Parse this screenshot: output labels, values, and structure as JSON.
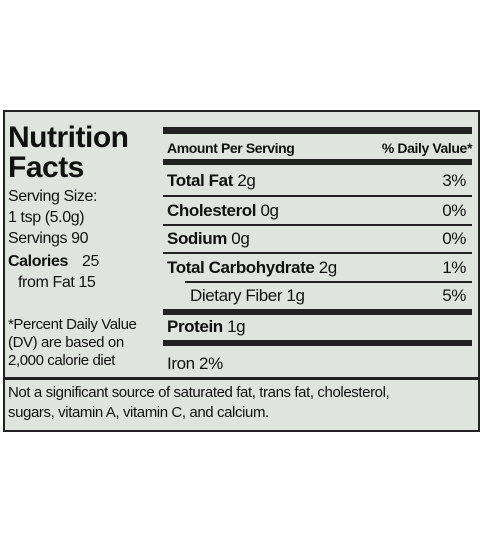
{
  "title_lines": [
    "Nutrition",
    "Facts"
  ],
  "serving": [
    "Serving Size:",
    "1 tsp (5.0g)",
    "Servings 90"
  ],
  "calories": {
    "label": "Calories",
    "value": "25"
  },
  "from_fat": "from Fat 15",
  "footnote": [
    "*Percent Daily Value",
    "(DV) are based on",
    "2,000 calorie diet"
  ],
  "header": {
    "amount": "Amount Per Serving",
    "dv": "% Daily Value*"
  },
  "rows": [
    {
      "name": "Total Fat",
      "amount": "2g",
      "dv": "3%"
    },
    {
      "name": "Cholesterol",
      "amount": "0g",
      "dv": "0%"
    },
    {
      "name": "Sodium",
      "amount": "0g",
      "dv": "0%"
    },
    {
      "name": "Total Carbohydrate",
      "amount": "2g",
      "dv": "1%"
    },
    {
      "name": "Dietary Fiber 1g",
      "dv": "5%"
    },
    {
      "name": "Protein",
      "amount": "1g"
    }
  ],
  "iron": "Iron 2%",
  "note": [
    "Not a significant source of saturated fat, trans fat, cholesterol,",
    "sugars, vitamin A, vitamin C, and calcium."
  ]
}
